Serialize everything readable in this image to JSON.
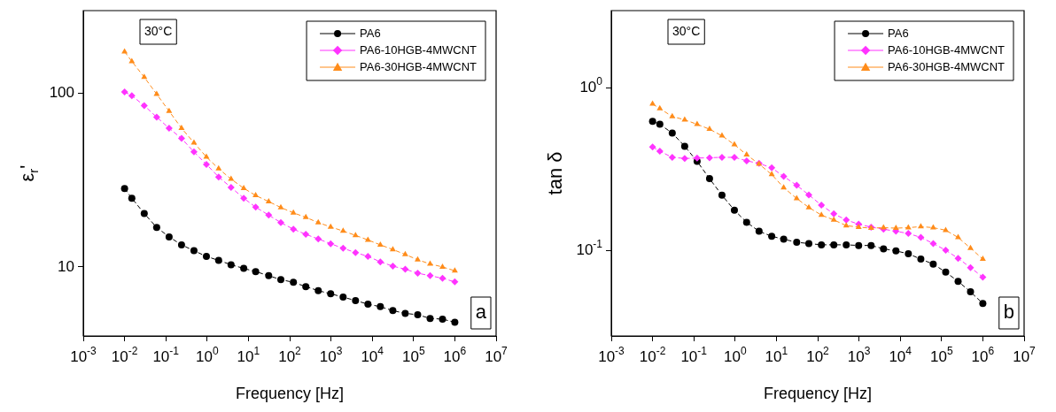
{
  "chart_data": [
    {
      "type": "line",
      "xlabel": "Frequency [Hz]",
      "ylabel": "ε$_{r}$'",
      "log": "xy",
      "grid": false,
      "legend": "top right",
      "annotations": [
        "30°C",
        "a"
      ],
      "xlim": [
        0.001,
        10000000
      ],
      "xticks": [
        {
          "value": 0.001,
          "label": "10$^{-3}$"
        },
        {
          "value": 0.01,
          "label": "10$^{-2}$"
        },
        {
          "value": 0.1,
          "label": "10$^{-1}$"
        },
        {
          "value": 1,
          "label": "10$^{0}$"
        },
        {
          "value": 10,
          "label": "10$^{1}$"
        },
        {
          "value": 100,
          "label": "10$^{2}$"
        },
        {
          "value": 1000,
          "label": "10$^{3}$"
        },
        {
          "value": 10000,
          "label": "10$^{4}$"
        },
        {
          "value": 100000,
          "label": "10$^{5}$"
        },
        {
          "value": 1000000,
          "label": "10$^{6}$"
        },
        {
          "value": 10000000,
          "label": "10$^{7}$"
        }
      ],
      "ylim": [
        4,
        300
      ],
      "yticks": [
        10,
        100
      ],
      "x": [
        0.01,
        0.015,
        0.03,
        0.06,
        0.12,
        0.24,
        0.48,
        0.96,
        1.9,
        3.8,
        7.7,
        15,
        31,
        61,
        123,
        246,
        492,
        983,
        1970,
        3930,
        7860,
        15700,
        31500,
        62900,
        126000,
        252000,
        503000,
        1000000
      ],
      "series": [
        {
          "name": "PA6",
          "color": "#000000",
          "marker": "circle",
          "line_style": "dashed",
          "values": [
            28.3,
            24.9,
            20.3,
            16.9,
            14.9,
            13.4,
            12.4,
            11.5,
            10.9,
            10.3,
            9.8,
            9.4,
            8.9,
            8.45,
            8.15,
            7.7,
            7.3,
            7.0,
            6.7,
            6.4,
            6.1,
            5.9,
            5.6,
            5.4,
            5.3,
            5.05,
            5.0,
            4.8
          ]
        },
        {
          "name": "PA6-10HGB-4MWCNT",
          "color": "#ff33ff",
          "marker": "diamond",
          "line_style": "dashed",
          "values": [
            102,
            97,
            85,
            73,
            63,
            55,
            46,
            39,
            33,
            28.7,
            24.9,
            22.1,
            19.9,
            18.0,
            16.5,
            15.4,
            14.5,
            13.6,
            12.8,
            12.1,
            11.5,
            10.7,
            10.1,
            9.7,
            9.2,
            8.9,
            8.6,
            8.2
          ]
        },
        {
          "name": "PA6-30HGB-4MWCNT",
          "color": "#ff8c1a",
          "marker": "triangle",
          "line_style": "dashed",
          "values": [
            174,
            153,
            124,
            99,
            79,
            63,
            52,
            43,
            36.8,
            32.1,
            28.4,
            25.8,
            23.8,
            22.0,
            20.5,
            19.3,
            18.0,
            17.0,
            16.1,
            15.2,
            14.3,
            13.4,
            12.6,
            11.8,
            11.0,
            10.4,
            10.0,
            9.5
          ]
        }
      ]
    },
    {
      "type": "line",
      "xlabel": "Frequency [Hz]",
      "ylabel": "tan δ",
      "log": "xy",
      "grid": false,
      "legend": "top right",
      "annotations": [
        "30°C",
        "b"
      ],
      "xlim": [
        0.001,
        10000000
      ],
      "xticks": [
        {
          "value": 0.001,
          "label": "10$^{-3}$"
        },
        {
          "value": 0.01,
          "label": "10$^{-2}$"
        },
        {
          "value": 0.1,
          "label": "10$^{-1}$"
        },
        {
          "value": 1,
          "label": "10$^{0}$"
        },
        {
          "value": 10,
          "label": "10$^{1}$"
        },
        {
          "value": 100,
          "label": "10$^{2}$"
        },
        {
          "value": 1000,
          "label": "10$^{3}$"
        },
        {
          "value": 10000,
          "label": "10$^{4}$"
        },
        {
          "value": 100000,
          "label": "10$^{5}$"
        },
        {
          "value": 1000000,
          "label": "10$^{6}$"
        },
        {
          "value": 10000000,
          "label": "10$^{7}$"
        }
      ],
      "ylim": [
        0.03,
        3
      ],
      "yticks": [
        {
          "value": 0.1,
          "label": "10$^{-1}$"
        },
        {
          "value": 1,
          "label": "10$^{0}$"
        }
      ],
      "x": [
        0.01,
        0.015,
        0.03,
        0.06,
        0.12,
        0.24,
        0.48,
        0.96,
        1.9,
        3.8,
        7.7,
        15,
        31,
        61,
        123,
        246,
        492,
        983,
        1970,
        3930,
        7860,
        15700,
        31500,
        62900,
        126000,
        252000,
        503000,
        1000000
      ],
      "series": [
        {
          "name": "PA6",
          "color": "#000000",
          "marker": "circle",
          "line_style": "dashed",
          "values": [
            0.626,
            0.6,
            0.53,
            0.44,
            0.355,
            0.278,
            0.22,
            0.178,
            0.15,
            0.132,
            0.123,
            0.118,
            0.113,
            0.111,
            0.109,
            0.109,
            0.109,
            0.108,
            0.108,
            0.103,
            0.1,
            0.096,
            0.089,
            0.083,
            0.074,
            0.065,
            0.056,
            0.0475
          ]
        },
        {
          "name": "PA6-10HGB-4MWCNT",
          "color": "#ff33ff",
          "marker": "diamond",
          "line_style": "dashed",
          "values": [
            0.436,
            0.41,
            0.376,
            0.37,
            0.372,
            0.374,
            0.376,
            0.376,
            0.358,
            0.345,
            0.324,
            0.287,
            0.253,
            0.221,
            0.191,
            0.169,
            0.155,
            0.146,
            0.14,
            0.136,
            0.132,
            0.128,
            0.121,
            0.111,
            0.101,
            0.09,
            0.079,
            0.069
          ]
        },
        {
          "name": "PA6-30HGB-4MWCNT",
          "color": "#ff8c1a",
          "marker": "triangle",
          "line_style": "dashed",
          "values": [
            0.8,
            0.75,
            0.67,
            0.64,
            0.6,
            0.56,
            0.51,
            0.45,
            0.39,
            0.342,
            0.295,
            0.245,
            0.21,
            0.185,
            0.166,
            0.155,
            0.143,
            0.14,
            0.138,
            0.139,
            0.138,
            0.139,
            0.141,
            0.139,
            0.134,
            0.121,
            0.104,
            0.089
          ]
        }
      ]
    }
  ]
}
